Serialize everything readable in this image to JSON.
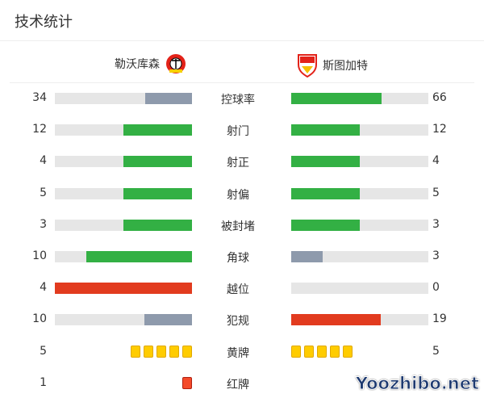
{
  "title": "技术统计",
  "home": {
    "name": "勒沃库森",
    "logo": "bayer-leverkusen-logo"
  },
  "away": {
    "name": "斯图加特",
    "logo": "vfb-stuttgart-logo"
  },
  "colors": {
    "green": "#33b044",
    "gray": "#8e9aac",
    "red": "#e23b1f",
    "track": "#e6e6e6",
    "yellow": "#ffcc00",
    "redcard": "#f44a2a"
  },
  "stats": [
    {
      "label": "控球率",
      "home": "34",
      "away": "66",
      "home_color": "gray",
      "away_color": "green"
    },
    {
      "label": "射门",
      "home": "12",
      "away": "12",
      "home_color": "green",
      "away_color": "green"
    },
    {
      "label": "射正",
      "home": "4",
      "away": "4",
      "home_color": "green",
      "away_color": "green"
    },
    {
      "label": "射偏",
      "home": "5",
      "away": "5",
      "home_color": "green",
      "away_color": "green"
    },
    {
      "label": "被封堵",
      "home": "3",
      "away": "3",
      "home_color": "green",
      "away_color": "green"
    },
    {
      "label": "角球",
      "home": "10",
      "away": "3",
      "home_color": "green",
      "away_color": "gray"
    },
    {
      "label": "越位",
      "home": "4",
      "away": "0",
      "home_color": "red",
      "away_color": "gray"
    },
    {
      "label": "犯规",
      "home": "10",
      "away": "19",
      "home_color": "gray",
      "away_color": "red"
    }
  ],
  "cards": [
    {
      "label": "黄牌",
      "home": "5",
      "away": "5",
      "type": "yellow"
    },
    {
      "label": "红牌",
      "home": "1",
      "type": "red"
    }
  ],
  "watermark": "Yoozhibo.net"
}
